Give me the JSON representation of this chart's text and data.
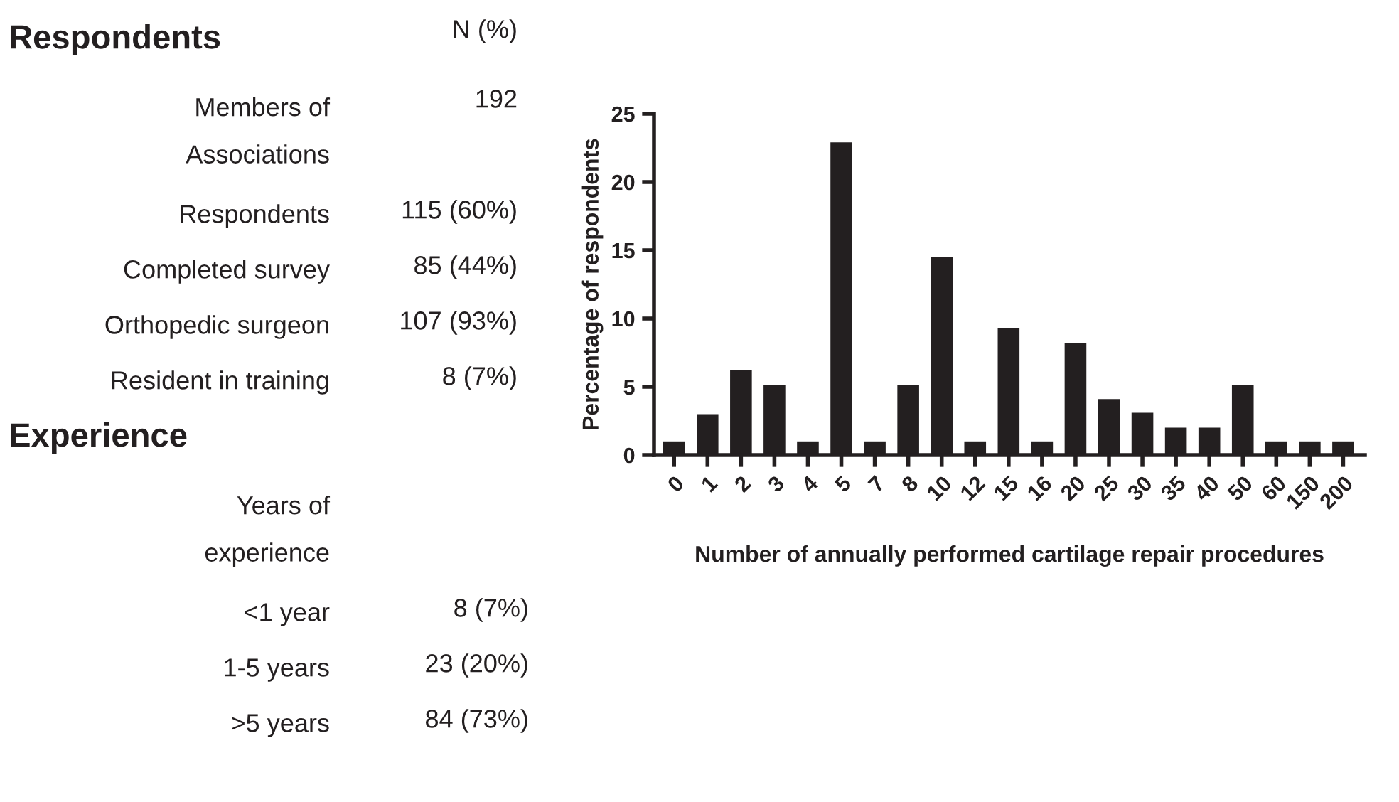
{
  "chart_data": [
    {
      "type": "other",
      "title": "Respondents",
      "subtitle": "N (%)",
      "categories": [
        "Members of\nAssociations",
        "Respondents",
        "Completed survey",
        "Orthopedic surgeon",
        "Resident in training"
      ],
      "value_labels": [
        "192",
        "115 (60%)",
        "85 (44%)",
        "107 (93%)",
        "8 (7%)"
      ]
    },
    {
      "type": "other",
      "title": "Experience",
      "categories": [
        "Years of\nexperience",
        "<1 year",
        "1-5 years",
        ">5 years"
      ],
      "value_labels": [
        null,
        "8 (7%)",
        "23 (20%)",
        "84 (73%)"
      ]
    },
    {
      "type": "bar",
      "xlabel": "Number of annually performed cartilage repair procedures",
      "ylabel": "Percentage of respondents",
      "categories": [
        "0",
        "1",
        "2",
        "3",
        "4",
        "5",
        "7",
        "8",
        "10",
        "12",
        "15",
        "16",
        "20",
        "25",
        "30",
        "35",
        "40",
        "50",
        "60",
        "150",
        "200"
      ],
      "values": [
        1,
        3,
        6.2,
        5.1,
        1,
        22.9,
        1,
        5.1,
        14.5,
        1,
        9.3,
        1,
        8.2,
        4.1,
        3.1,
        2,
        2,
        5.1,
        1,
        1,
        1
      ],
      "color": "#231f20",
      "ylim": [
        0,
        25
      ],
      "yticks": [
        0,
        5,
        10,
        15,
        20,
        25
      ],
      "grid": false,
      "legend": false
    }
  ]
}
